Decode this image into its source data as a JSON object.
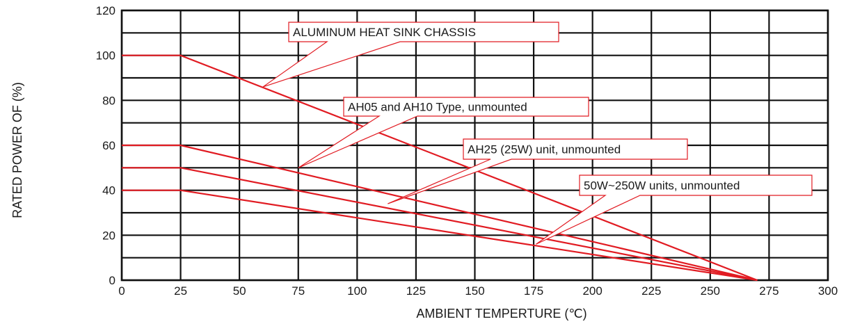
{
  "chart_data": {
    "type": "line",
    "xlabel": "AMBIENT TEMPERTURE (℃)",
    "ylabel": "RATED POWER OF (%)",
    "xlim": [
      0,
      300
    ],
    "ylim": [
      0,
      120
    ],
    "x_ticks": [
      0,
      25,
      50,
      75,
      100,
      125,
      150,
      175,
      200,
      225,
      250,
      275,
      300
    ],
    "y_ticks": [
      0,
      20,
      40,
      60,
      80,
      100,
      120
    ],
    "x_tick_labels": [
      "0",
      "25",
      "50",
      "75",
      "100",
      "125",
      "150",
      "175",
      "200",
      "225",
      "250",
      "275",
      "300"
    ],
    "y_tick_labels": [
      "0",
      "20",
      "40",
      "60",
      "80",
      "100",
      "120"
    ],
    "x_grid_step": 25,
    "y_grid_step": 10,
    "grid": true,
    "series": [
      {
        "x": [
          0,
          25,
          270
        ],
        "y": [
          100,
          100,
          0
        ]
      },
      {
        "x": [
          0,
          25,
          270
        ],
        "y": [
          60,
          60,
          0
        ]
      },
      {
        "x": [
          0,
          25,
          270
        ],
        "y": [
          50,
          50,
          0
        ]
      },
      {
        "x": [
          0,
          25,
          270
        ],
        "y": [
          40,
          40,
          0
        ]
      }
    ],
    "callouts": [
      {
        "text": "ALUMINUM HEAT SINK CHASSIS",
        "target": [
          60,
          86
        ]
      },
      {
        "text": "AH05 and AH10 Type, unmounted",
        "target": [
          75,
          50
        ]
      },
      {
        "text": "AH25 (25W) unit, unmounted",
        "target": [
          113,
          34
        ]
      },
      {
        "text": "50W~250W units, unmounted",
        "target": [
          176,
          16
        ]
      }
    ],
    "colors": {
      "series": "#e11b22",
      "grid": "#111111",
      "text": "#1a1a1a"
    }
  }
}
